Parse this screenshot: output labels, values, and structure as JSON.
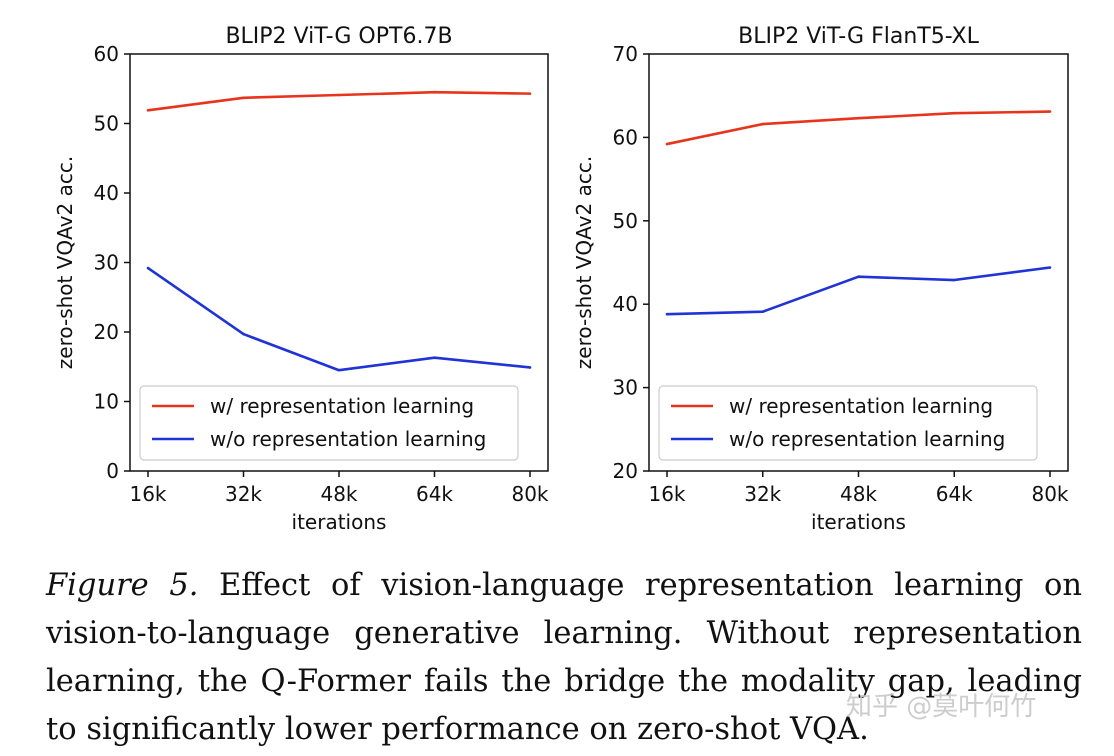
{
  "colors": {
    "with": "#e8341c",
    "without": "#1f33d6"
  },
  "chart_data": [
    {
      "type": "line",
      "title": "BLIP2 ViT-G OPT6.7B",
      "xlabel": "iterations",
      "ylabel": "zero-shot VQAv2 acc.",
      "categories": [
        "16k",
        "32k",
        "48k",
        "64k",
        "80k"
      ],
      "ylim": [
        0,
        60
      ],
      "yticks": [
        0,
        10,
        20,
        30,
        40,
        50,
        60
      ],
      "legend_position": "lower-right",
      "grid": false,
      "series": [
        {
          "name": "w/ representation learning",
          "key": "with",
          "values": [
            51.9,
            53.7,
            54.1,
            54.5,
            54.3
          ]
        },
        {
          "name": "w/o representation learning",
          "key": "without",
          "values": [
            29.2,
            19.7,
            14.5,
            16.3,
            14.9
          ]
        }
      ]
    },
    {
      "type": "line",
      "title": "BLIP2 ViT-G FlanT5-XL",
      "xlabel": "iterations",
      "ylabel": "zero-shot VQAv2 acc.",
      "categories": [
        "16k",
        "32k",
        "48k",
        "64k",
        "80k"
      ],
      "ylim": [
        20,
        70
      ],
      "yticks": [
        20,
        30,
        40,
        50,
        60,
        70
      ],
      "legend_position": "lower-right",
      "grid": false,
      "series": [
        {
          "name": "w/ representation learning",
          "key": "with",
          "values": [
            59.2,
            61.6,
            62.3,
            62.9,
            63.1
          ]
        },
        {
          "name": "w/o representation learning",
          "key": "without",
          "values": [
            38.8,
            39.1,
            43.3,
            42.9,
            44.4
          ]
        }
      ]
    }
  ],
  "caption": {
    "label": "Figure 5.",
    "text": "Effect of vision-language representation learning on vision-to-language generative learning. Without representation learning, the Q-Former fails the bridge the modality gap, leading to significantly lower performance on zero-shot VQA."
  },
  "watermark": "知乎 @莫叶何竹"
}
